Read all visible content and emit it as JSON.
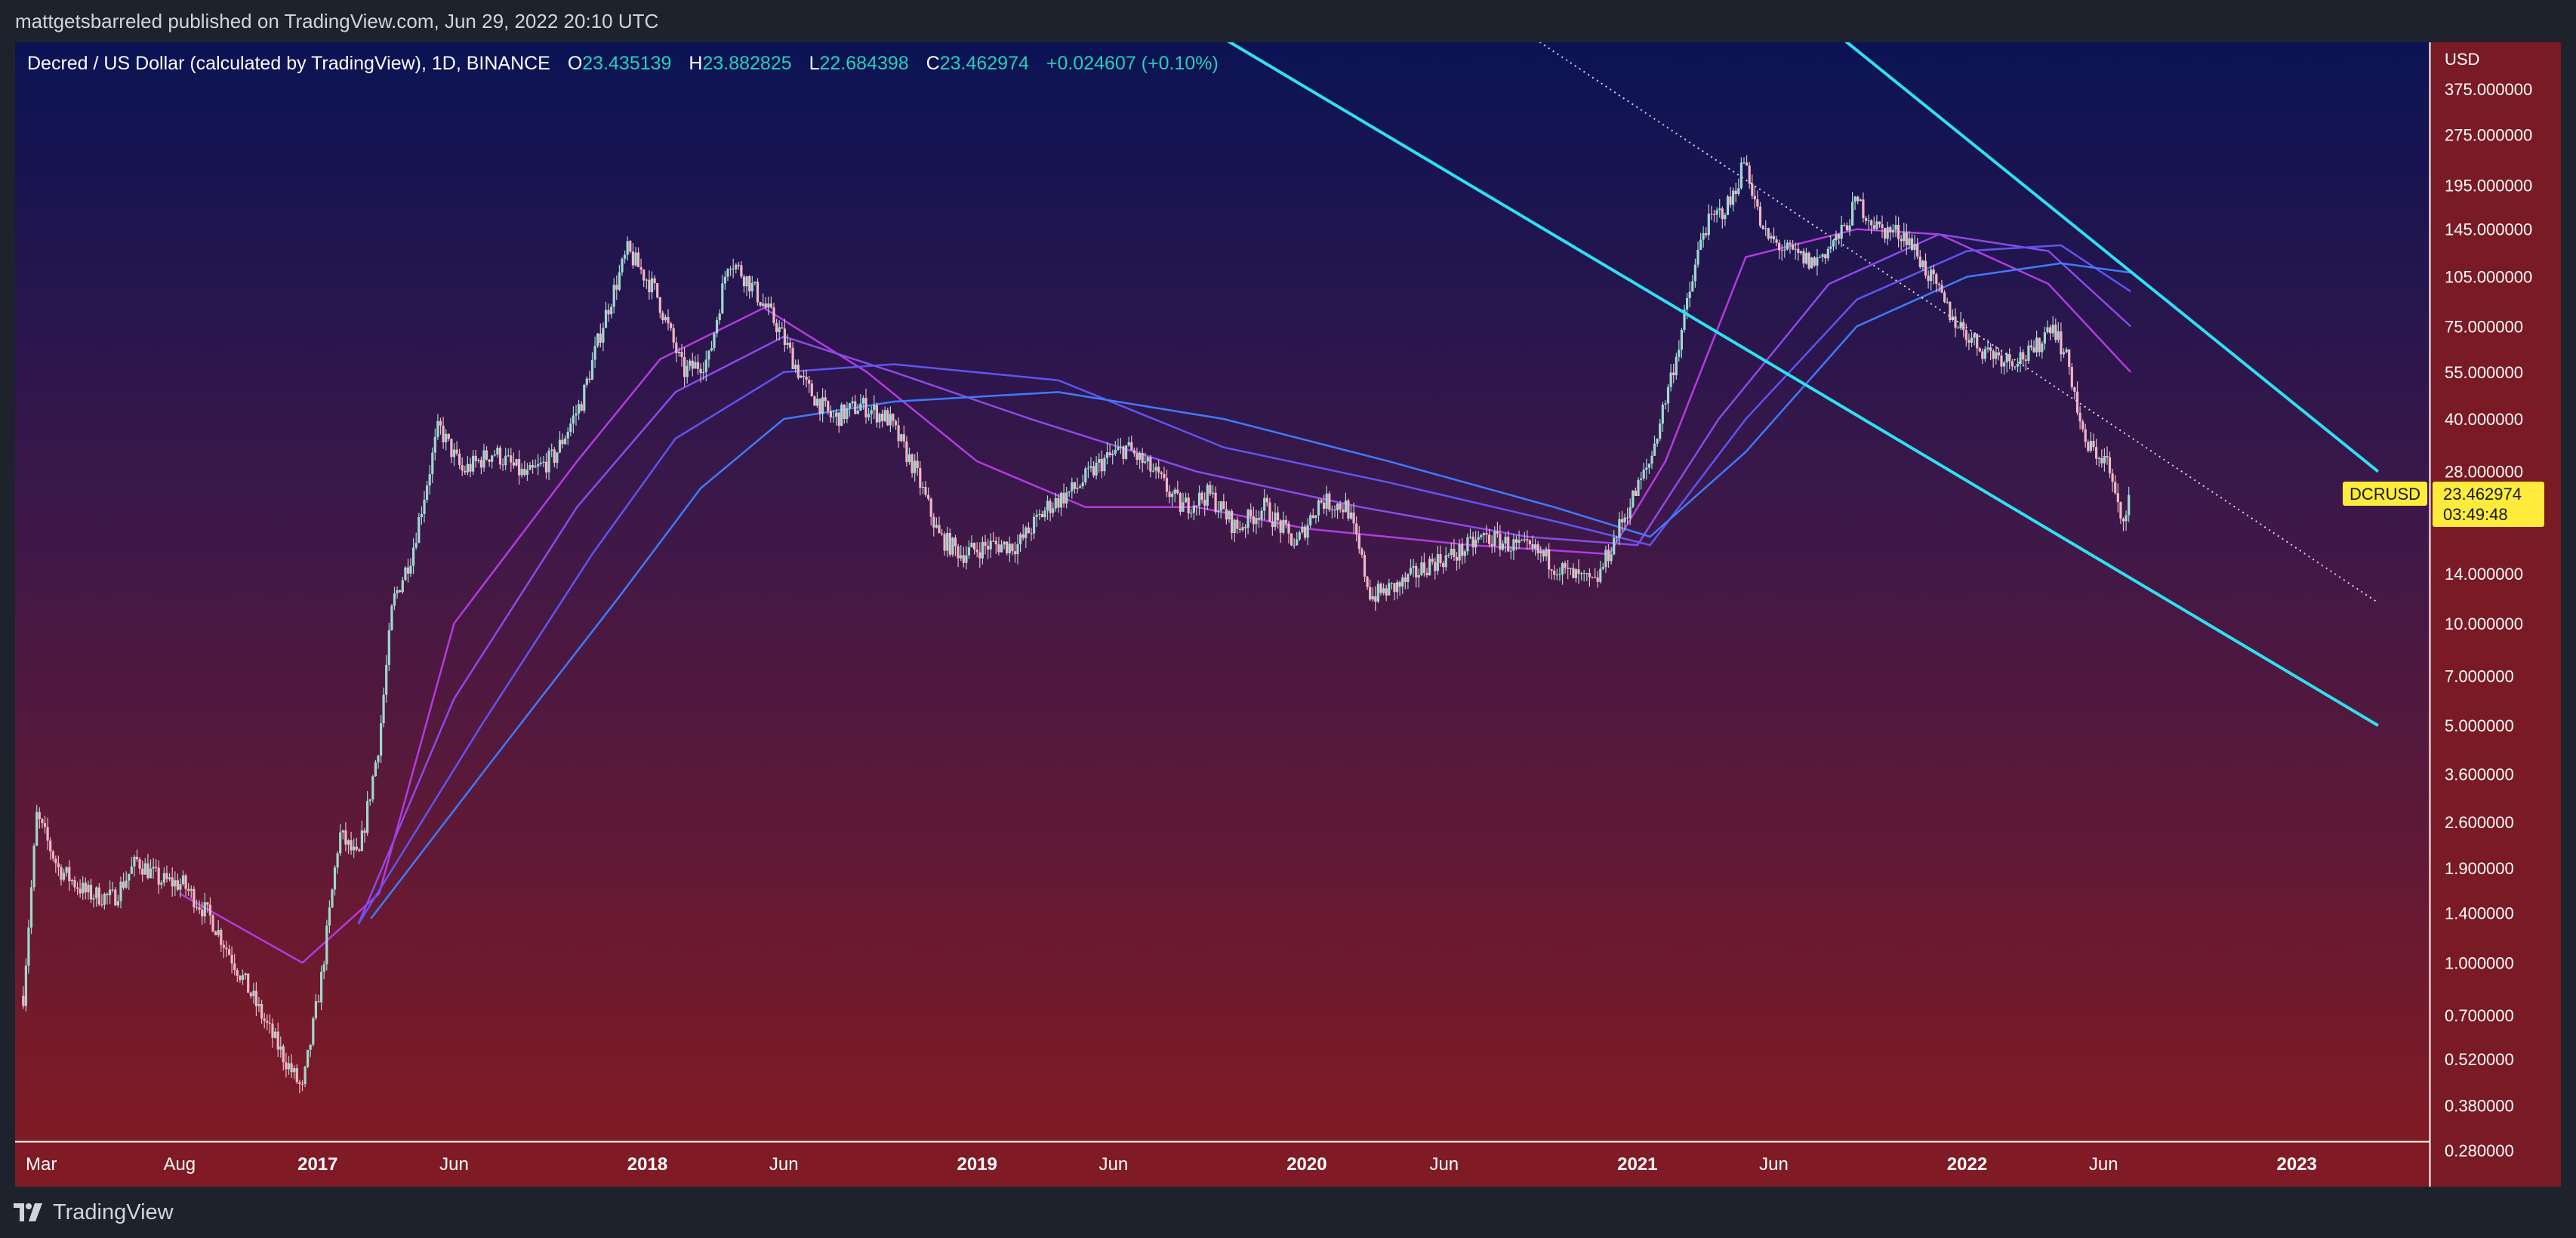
{
  "header": {
    "publisher_line": "mattgetsbarreled published on TradingView.com, Jun 29, 2022 20:10 UTC"
  },
  "legend": {
    "symbol": "Decred / US Dollar (calculated by TradingView), 1D, BINANCE",
    "o_label": "O",
    "o_value": "23.435139",
    "h_label": "H",
    "h_value": "23.882825",
    "l_label": "L",
    "l_value": "22.684398",
    "c_label": "C",
    "c_value": "23.462974",
    "change": "+0.024607 (+0.10%)"
  },
  "footer": {
    "brand": "TradingView",
    "logo_icon": "tradingview-logo-icon"
  },
  "colors": {
    "background_top": "#0b1354",
    "background_bottom": "#7f1a24",
    "channel_line": "#2ee0f0",
    "up_candle": "#9fd8cf",
    "down_candle": "#f0b6c4",
    "last_price_label": "#ffeb3b",
    "legend_value": "#26d0b8"
  },
  "chart_data": {
    "type": "candlestick",
    "symbol_ticker": "DCRUSD",
    "last_price": "23.462974",
    "countdown": "03:49:48",
    "y_axis": {
      "unit_label": "USD",
      "scale": "log",
      "ticks": [
        "375.000000",
        "275.000000",
        "195.000000",
        "145.000000",
        "105.000000",
        "75.000000",
        "55.000000",
        "40.000000",
        "28.000000",
        "14.000000",
        "10.000000",
        "7.000000",
        "5.000000",
        "3.600000",
        "2.600000",
        "1.900000",
        "1.400000",
        "1.000000",
        "0.700000",
        "0.520000",
        "0.380000",
        "0.280000"
      ]
    },
    "x_axis": {
      "ticks": [
        {
          "label": "Mar",
          "date": "2016-03-01",
          "bold": false
        },
        {
          "label": "Aug",
          "date": "2016-08-01",
          "bold": false
        },
        {
          "label": "2017",
          "date": "2017-01-01",
          "bold": true
        },
        {
          "label": "Jun",
          "date": "2017-06-01",
          "bold": false
        },
        {
          "label": "2018",
          "date": "2018-01-01",
          "bold": true
        },
        {
          "label": "Jun",
          "date": "2018-06-01",
          "bold": false
        },
        {
          "label": "2019",
          "date": "2019-01-01",
          "bold": true
        },
        {
          "label": "Jun",
          "date": "2019-06-01",
          "bold": false
        },
        {
          "label": "2020",
          "date": "2020-01-01",
          "bold": true
        },
        {
          "label": "Jun",
          "date": "2020-06-01",
          "bold": false
        },
        {
          "label": "2021",
          "date": "2021-01-01",
          "bold": true
        },
        {
          "label": "Jun",
          "date": "2021-06-01",
          "bold": false
        },
        {
          "label": "2022",
          "date": "2022-01-01",
          "bold": true
        },
        {
          "label": "Jun",
          "date": "2022-06-01",
          "bold": false
        },
        {
          "label": "2023",
          "date": "2023-01-01",
          "bold": true
        }
      ]
    },
    "price_path": [
      [
        "2016-02-10",
        0.8
      ],
      [
        "2016-02-25",
        2.7
      ],
      [
        "2016-03-20",
        1.9
      ],
      [
        "2016-04-20",
        1.6
      ],
      [
        "2016-05-20",
        1.55
      ],
      [
        "2016-06-15",
        2.0
      ],
      [
        "2016-07-10",
        1.75
      ],
      [
        "2016-08-05",
        1.7
      ],
      [
        "2016-09-05",
        1.35
      ],
      [
        "2016-10-10",
        0.9
      ],
      [
        "2016-11-10",
        0.62
      ],
      [
        "2016-12-15",
        0.42
      ],
      [
        "2017-01-05",
        0.9
      ],
      [
        "2017-01-25",
        2.4
      ],
      [
        "2017-02-15",
        2.0
      ],
      [
        "2017-03-10",
        4.5
      ],
      [
        "2017-03-25",
        11.5
      ],
      [
        "2017-04-15",
        16
      ],
      [
        "2017-05-15",
        38
      ],
      [
        "2017-06-10",
        28
      ],
      [
        "2017-07-15",
        32
      ],
      [
        "2017-08-20",
        27
      ],
      [
        "2017-09-20",
        31
      ],
      [
        "2017-10-20",
        45
      ],
      [
        "2017-11-15",
        80
      ],
      [
        "2017-12-10",
        125
      ],
      [
        "2018-01-10",
        95
      ],
      [
        "2018-02-10",
        55
      ],
      [
        "2018-03-10",
        60
      ],
      [
        "2018-04-01",
        120
      ],
      [
        "2018-04-25",
        100
      ],
      [
        "2018-05-25",
        75
      ],
      [
        "2018-06-25",
        50
      ],
      [
        "2018-07-25",
        40
      ],
      [
        "2018-08-25",
        44
      ],
      [
        "2018-09-25",
        40
      ],
      [
        "2018-10-25",
        28
      ],
      [
        "2018-11-20",
        18
      ],
      [
        "2018-12-15",
        16
      ],
      [
        "2019-01-15",
        17
      ],
      [
        "2019-02-15",
        17
      ],
      [
        "2019-03-20",
        22
      ],
      [
        "2019-04-20",
        25
      ],
      [
        "2019-05-20",
        30
      ],
      [
        "2019-06-15",
        33
      ],
      [
        "2019-07-15",
        28
      ],
      [
        "2019-08-15",
        22
      ],
      [
        "2019-09-15",
        24
      ],
      [
        "2019-10-15",
        19
      ],
      [
        "2019-11-15",
        22
      ],
      [
        "2019-12-20",
        17
      ],
      [
        "2020-01-15",
        23
      ],
      [
        "2020-02-15",
        22
      ],
      [
        "2020-03-12",
        12
      ],
      [
        "2020-04-15",
        13
      ],
      [
        "2020-05-15",
        15
      ],
      [
        "2020-06-15",
        16
      ],
      [
        "2020-07-15",
        18
      ],
      [
        "2020-08-15",
        17
      ],
      [
        "2020-09-15",
        16
      ],
      [
        "2020-10-15",
        14
      ],
      [
        "2020-11-15",
        13
      ],
      [
        "2020-12-15",
        20
      ],
      [
        "2021-01-15",
        30
      ],
      [
        "2021-02-15",
        65
      ],
      [
        "2021-03-15",
        145
      ],
      [
        "2021-04-15",
        175
      ],
      [
        "2021-04-30",
        235
      ],
      [
        "2021-05-20",
        140
      ],
      [
        "2021-06-15",
        125
      ],
      [
        "2021-07-15",
        115
      ],
      [
        "2021-08-15",
        140
      ],
      [
        "2021-09-01",
        175
      ],
      [
        "2021-09-25",
        145
      ],
      [
        "2021-10-25",
        140
      ],
      [
        "2021-11-25",
        100
      ],
      [
        "2021-12-15",
        80
      ],
      [
        "2022-01-15",
        65
      ],
      [
        "2022-02-15",
        60
      ],
      [
        "2022-03-15",
        62
      ],
      [
        "2022-04-05",
        78
      ],
      [
        "2022-04-25",
        56
      ],
      [
        "2022-05-10",
        34
      ],
      [
        "2022-06-05",
        30
      ],
      [
        "2022-06-20",
        20
      ],
      [
        "2022-06-29",
        23.46
      ]
    ],
    "moving_averages": [
      {
        "color": "#b33be0",
        "path": [
          [
            "2016-08-01",
            1.6
          ],
          [
            "2016-12-15",
            1.0
          ],
          [
            "2017-03-10",
            1.6
          ],
          [
            "2017-06-01",
            10
          ],
          [
            "2017-10-15",
            30
          ],
          [
            "2018-01-15",
            60
          ],
          [
            "2018-05-10",
            85
          ],
          [
            "2018-09-01",
            55
          ],
          [
            "2019-01-01",
            30
          ],
          [
            "2019-05-01",
            22
          ],
          [
            "2019-09-01",
            22
          ],
          [
            "2020-01-01",
            19
          ],
          [
            "2020-07-01",
            17
          ],
          [
            "2020-12-01",
            16
          ],
          [
            "2021-02-01",
            30
          ],
          [
            "2021-05-01",
            120
          ],
          [
            "2021-09-01",
            145
          ],
          [
            "2021-12-01",
            140
          ],
          [
            "2022-04-01",
            100
          ],
          [
            "2022-07-01",
            55
          ]
        ]
      },
      {
        "color": "#8c4ae8",
        "path": [
          [
            "2017-02-15",
            1.3
          ],
          [
            "2017-06-01",
            6
          ],
          [
            "2017-10-15",
            22
          ],
          [
            "2018-02-01",
            48
          ],
          [
            "2018-06-01",
            70
          ],
          [
            "2018-10-01",
            55
          ],
          [
            "2019-03-01",
            40
          ],
          [
            "2019-09-01",
            28
          ],
          [
            "2020-03-01",
            22
          ],
          [
            "2020-09-01",
            18
          ],
          [
            "2021-01-01",
            17
          ],
          [
            "2021-04-01",
            40
          ],
          [
            "2021-08-01",
            100
          ],
          [
            "2021-12-01",
            140
          ],
          [
            "2022-04-01",
            125
          ],
          [
            "2022-07-01",
            75
          ]
        ]
      },
      {
        "color": "#5f55f0",
        "path": [
          [
            "2017-02-15",
            1.3
          ],
          [
            "2017-07-01",
            5
          ],
          [
            "2017-11-01",
            16
          ],
          [
            "2018-02-01",
            35
          ],
          [
            "2018-06-01",
            55
          ],
          [
            "2018-10-01",
            58
          ],
          [
            "2019-04-01",
            52
          ],
          [
            "2019-10-01",
            33
          ],
          [
            "2020-04-01",
            26
          ],
          [
            "2020-10-01",
            20
          ],
          [
            "2021-01-15",
            17
          ],
          [
            "2021-05-01",
            40
          ],
          [
            "2021-09-01",
            90
          ],
          [
            "2022-01-01",
            125
          ],
          [
            "2022-04-15",
            130
          ],
          [
            "2022-07-01",
            95
          ]
        ]
      },
      {
        "color": "#3f7bff",
        "path": [
          [
            "2017-03-01",
            1.35
          ],
          [
            "2017-07-15",
            4
          ],
          [
            "2017-12-01",
            12
          ],
          [
            "2018-03-01",
            25
          ],
          [
            "2018-06-01",
            40
          ],
          [
            "2018-10-01",
            45
          ],
          [
            "2019-04-01",
            48
          ],
          [
            "2019-10-01",
            40
          ],
          [
            "2020-04-01",
            30
          ],
          [
            "2020-10-01",
            22
          ],
          [
            "2021-01-15",
            18
          ],
          [
            "2021-05-01",
            32
          ],
          [
            "2021-09-01",
            75
          ],
          [
            "2022-01-01",
            105
          ],
          [
            "2022-04-15",
            115
          ],
          [
            "2022-07-01",
            108
          ]
        ]
      }
    ],
    "channel_lines": [
      {
        "style": "solid",
        "from": [
          "2018-10-01",
          2000
        ],
        "to": [
          "2023-04-01",
          5.0
        ]
      },
      {
        "style": "solid",
        "from": [
          "2020-11-20",
          2000
        ],
        "to": [
          "2023-04-01",
          28.0
        ]
      },
      {
        "style": "dotted",
        "from": [
          "2019-10-20",
          2000
        ],
        "to": [
          "2023-04-01",
          11.5
        ]
      }
    ]
  }
}
